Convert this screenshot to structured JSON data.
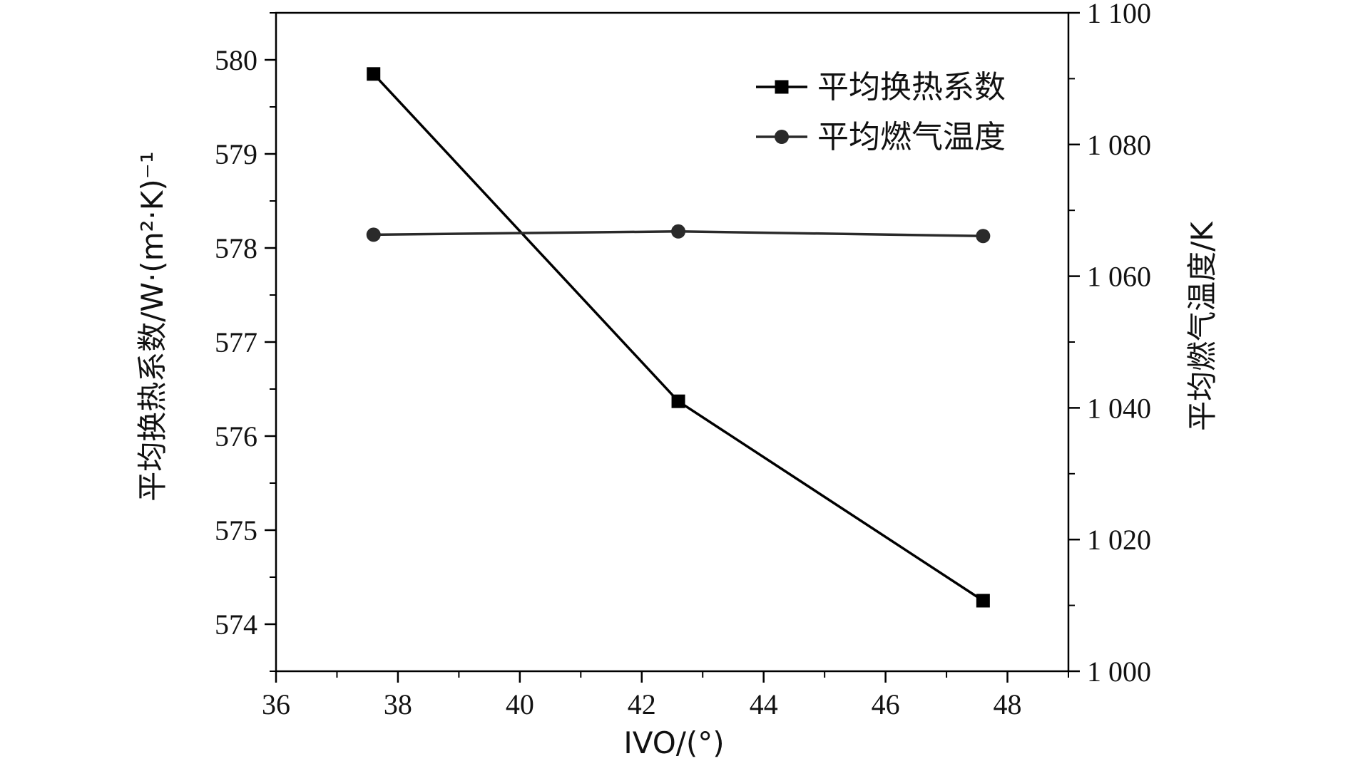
{
  "chart_data": {
    "type": "line",
    "xlabel": "IVO/(°)",
    "x": [
      37.6,
      42.6,
      47.6
    ],
    "xlim": [
      36,
      49
    ],
    "xticks": [
      36,
      38,
      40,
      42,
      44,
      46,
      48
    ],
    "xtick_labels": [
      "36",
      "38",
      "40",
      "42",
      "44",
      "46",
      "48"
    ],
    "y_left": {
      "label": "平均换热系数/W·(m²·K)⁻¹",
      "lim": [
        573.5,
        580.5
      ],
      "ticks": [
        574,
        575,
        576,
        577,
        578,
        579,
        580
      ],
      "tick_labels": [
        "574",
        "575",
        "576",
        "577",
        "578",
        "579",
        "580"
      ]
    },
    "y_right": {
      "label": "平均燃气温度/K",
      "lim": [
        1000,
        1100
      ],
      "ticks": [
        1000,
        1020,
        1040,
        1060,
        1080,
        1100
      ],
      "tick_labels": [
        "1 000",
        "1 020",
        "1 040",
        "1 060",
        "1 080",
        "1 100"
      ]
    },
    "series": [
      {
        "name": "平均换热系数",
        "axis": "left",
        "marker": "square",
        "values": [
          579.85,
          576.37,
          574.25
        ]
      },
      {
        "name": "平均燃气温度",
        "axis": "right",
        "marker": "circle",
        "values": [
          1066.3,
          1066.8,
          1066.1
        ]
      }
    ],
    "legend_position": "top-right",
    "colors": {
      "series1": "#000000",
      "series2": "#2a2a2a",
      "axis": "#000000"
    }
  }
}
